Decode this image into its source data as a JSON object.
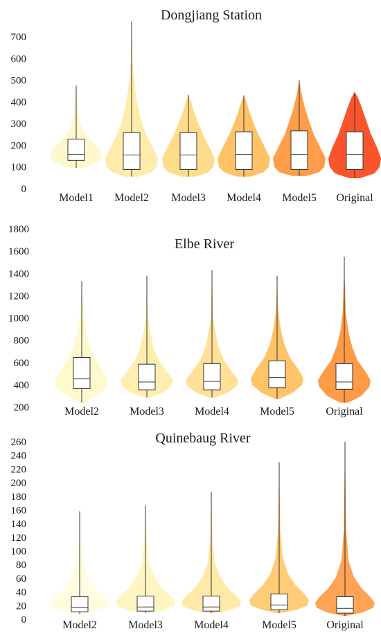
{
  "figure": {
    "description_title": ""
  },
  "chart_data": [
    {
      "type": "violin",
      "title": "Dongjiang Station",
      "xlabel": "",
      "ylabel": "",
      "ylim": [
        0,
        780
      ],
      "yticks": [
        0,
        100,
        200,
        300,
        400,
        500,
        600,
        700
      ],
      "grid": false,
      "series": [
        {
          "name": "Model1",
          "color": "#fff8cc",
          "min": 95,
          "q1": 130,
          "median": 158,
          "q3": 228,
          "max": 475,
          "density": [
            [
              95,
              0.25
            ],
            [
              110,
              0.6
            ],
            [
              130,
              0.9
            ],
            [
              160,
              1.0
            ],
            [
              190,
              0.85
            ],
            [
              230,
              0.5
            ],
            [
              280,
              0.22
            ],
            [
              330,
              0.1
            ],
            [
              400,
              0.04
            ],
            [
              475,
              0.0
            ]
          ]
        },
        {
          "name": "Model2",
          "color": "#ffebaa",
          "min": 55,
          "q1": 88,
          "median": 155,
          "q3": 258,
          "max": 770,
          "density": [
            [
              55,
              0.25
            ],
            [
              75,
              0.75
            ],
            [
              100,
              0.95
            ],
            [
              140,
              1.0
            ],
            [
              190,
              0.8
            ],
            [
              250,
              0.55
            ],
            [
              320,
              0.35
            ],
            [
              400,
              0.2
            ],
            [
              470,
              0.12
            ],
            [
              520,
              0.07
            ],
            [
              600,
              0.03
            ],
            [
              700,
              0.01
            ],
            [
              770,
              0.0
            ]
          ]
        },
        {
          "name": "Model3",
          "color": "#ffdc8c",
          "min": 55,
          "q1": 88,
          "median": 155,
          "q3": 258,
          "max": 432,
          "density": [
            [
              55,
              0.25
            ],
            [
              75,
              0.75
            ],
            [
              100,
              0.95
            ],
            [
              140,
              1.0
            ],
            [
              190,
              0.8
            ],
            [
              250,
              0.55
            ],
            [
              300,
              0.38
            ],
            [
              350,
              0.22
            ],
            [
              400,
              0.1
            ],
            [
              432,
              0.0
            ]
          ]
        },
        {
          "name": "Model4",
          "color": "#ffc266",
          "min": 55,
          "q1": 88,
          "median": 158,
          "q3": 262,
          "max": 430,
          "density": [
            [
              55,
              0.25
            ],
            [
              75,
              0.75
            ],
            [
              100,
              0.95
            ],
            [
              140,
              1.0
            ],
            [
              190,
              0.8
            ],
            [
              250,
              0.55
            ],
            [
              300,
              0.38
            ],
            [
              350,
              0.22
            ],
            [
              400,
              0.1
            ],
            [
              430,
              0.0
            ]
          ]
        },
        {
          "name": "Model5",
          "color": "#ff9d4a",
          "min": 58,
          "q1": 88,
          "median": 158,
          "q3": 266,
          "max": 500,
          "density": [
            [
              58,
              0.25
            ],
            [
              75,
              0.75
            ],
            [
              100,
              0.95
            ],
            [
              140,
              1.0
            ],
            [
              190,
              0.8
            ],
            [
              250,
              0.55
            ],
            [
              310,
              0.38
            ],
            [
              370,
              0.22
            ],
            [
              430,
              0.1
            ],
            [
              500,
              0.0
            ]
          ]
        },
        {
          "name": "Original",
          "color": "#f9542b",
          "min": 48,
          "q1": 88,
          "median": 158,
          "q3": 262,
          "max": 445,
          "density": [
            [
              48,
              0.2
            ],
            [
              70,
              0.75
            ],
            [
              100,
              0.95
            ],
            [
              140,
              1.0
            ],
            [
              190,
              0.85
            ],
            [
              250,
              0.62
            ],
            [
              310,
              0.45
            ],
            [
              370,
              0.28
            ],
            [
              420,
              0.12
            ],
            [
              445,
              0.0
            ]
          ]
        }
      ]
    },
    {
      "type": "violin",
      "title": "Elbe River",
      "xlabel": "",
      "ylabel": "",
      "ylim": [
        200,
        1800
      ],
      "yticks": [
        200,
        400,
        600,
        800,
        1000,
        1200,
        1400,
        1600,
        1800
      ],
      "grid": false,
      "series": [
        {
          "name": "Model2",
          "color": "#fffacc",
          "min": 240,
          "q1": 365,
          "median": 455,
          "q3": 645,
          "max": 1330,
          "density": [
            [
              240,
              0.1
            ],
            [
              300,
              0.55
            ],
            [
              380,
              0.95
            ],
            [
              450,
              1.0
            ],
            [
              530,
              0.8
            ],
            [
              620,
              0.55
            ],
            [
              720,
              0.35
            ],
            [
              850,
              0.18
            ],
            [
              1000,
              0.08
            ],
            [
              1150,
              0.03
            ],
            [
              1330,
              0.0
            ]
          ]
        },
        {
          "name": "Model3",
          "color": "#ffeeb0",
          "min": 285,
          "q1": 355,
          "median": 425,
          "q3": 585,
          "max": 1380,
          "density": [
            [
              285,
              0.1
            ],
            [
              330,
              0.6
            ],
            [
              390,
              0.95
            ],
            [
              440,
              1.0
            ],
            [
              520,
              0.75
            ],
            [
              620,
              0.45
            ],
            [
              740,
              0.25
            ],
            [
              880,
              0.12
            ],
            [
              1000,
              0.05
            ],
            [
              1150,
              0.02
            ],
            [
              1380,
              0.0
            ]
          ]
        },
        {
          "name": "Model4",
          "color": "#ffe096",
          "min": 285,
          "q1": 355,
          "median": 430,
          "q3": 590,
          "max": 1430,
          "density": [
            [
              285,
              0.1
            ],
            [
              330,
              0.6
            ],
            [
              390,
              0.95
            ],
            [
              440,
              1.0
            ],
            [
              520,
              0.75
            ],
            [
              620,
              0.45
            ],
            [
              740,
              0.25
            ],
            [
              880,
              0.12
            ],
            [
              1000,
              0.05
            ],
            [
              1200,
              0.02
            ],
            [
              1430,
              0.0
            ]
          ]
        },
        {
          "name": "Model5",
          "color": "#ffc468",
          "min": 275,
          "q1": 375,
          "median": 465,
          "q3": 615,
          "max": 1380,
          "density": [
            [
              275,
              0.1
            ],
            [
              330,
              0.6
            ],
            [
              400,
              0.95
            ],
            [
              460,
              1.0
            ],
            [
              540,
              0.8
            ],
            [
              640,
              0.5
            ],
            [
              760,
              0.28
            ],
            [
              900,
              0.14
            ],
            [
              1050,
              0.05
            ],
            [
              1200,
              0.02
            ],
            [
              1380,
              0.0
            ]
          ]
        },
        {
          "name": "Original",
          "color": "#ff9a45",
          "min": 240,
          "q1": 360,
          "median": 425,
          "q3": 590,
          "max": 1550,
          "density": [
            [
              240,
              0.15
            ],
            [
              300,
              0.65
            ],
            [
              380,
              0.95
            ],
            [
              440,
              1.0
            ],
            [
              520,
              0.8
            ],
            [
              620,
              0.5
            ],
            [
              740,
              0.3
            ],
            [
              880,
              0.15
            ],
            [
              1050,
              0.06
            ],
            [
              1300,
              0.02
            ],
            [
              1550,
              0.0
            ]
          ]
        }
      ]
    },
    {
      "type": "violin",
      "title": "Quinebaug River",
      "xlabel": "",
      "ylabel": "",
      "ylim": [
        0,
        260
      ],
      "yticks": [
        0,
        20,
        40,
        60,
        80,
        100,
        120,
        140,
        160,
        180,
        200,
        220,
        240,
        260
      ],
      "grid": false,
      "series": [
        {
          "name": "Model2",
          "color": "#fffde0",
          "min": 8,
          "q1": 11,
          "median": 17,
          "q3": 33,
          "max": 158,
          "density": [
            [
              8,
              0.05
            ],
            [
              12,
              0.6
            ],
            [
              18,
              0.95
            ],
            [
              25,
              1.0
            ],
            [
              33,
              0.85
            ],
            [
              45,
              0.55
            ],
            [
              60,
              0.3
            ],
            [
              80,
              0.12
            ],
            [
              110,
              0.04
            ],
            [
              158,
              0.0
            ]
          ]
        },
        {
          "name": "Model3",
          "color": "#fff5c2",
          "min": 9,
          "q1": 12,
          "median": 18,
          "q3": 34,
          "max": 167,
          "density": [
            [
              9,
              0.05
            ],
            [
              13,
              0.6
            ],
            [
              19,
              0.95
            ],
            [
              26,
              1.0
            ],
            [
              34,
              0.85
            ],
            [
              46,
              0.55
            ],
            [
              62,
              0.3
            ],
            [
              82,
              0.12
            ],
            [
              115,
              0.04
            ],
            [
              167,
              0.0
            ]
          ]
        },
        {
          "name": "Model4",
          "color": "#ffe9a6",
          "min": 9,
          "q1": 12,
          "median": 18,
          "q3": 34,
          "max": 187,
          "density": [
            [
              9,
              0.05
            ],
            [
              13,
              0.6
            ],
            [
              19,
              0.95
            ],
            [
              26,
              1.0
            ],
            [
              34,
              0.85
            ],
            [
              46,
              0.55
            ],
            [
              62,
              0.3
            ],
            [
              82,
              0.12
            ],
            [
              115,
              0.04
            ],
            [
              187,
              0.0
            ]
          ]
        },
        {
          "name": "Model5",
          "color": "#ffcd78",
          "min": 9,
          "q1": 14,
          "median": 21,
          "q3": 37,
          "max": 230,
          "density": [
            [
              9,
              0.05
            ],
            [
              14,
              0.6
            ],
            [
              20,
              0.95
            ],
            [
              28,
              1.0
            ],
            [
              37,
              0.85
            ],
            [
              50,
              0.55
            ],
            [
              66,
              0.3
            ],
            [
              90,
              0.12
            ],
            [
              130,
              0.04
            ],
            [
              230,
              0.0
            ]
          ]
        },
        {
          "name": "Original",
          "color": "#ffa455",
          "min": 5,
          "q1": 9,
          "median": 16,
          "q3": 33,
          "max": 260,
          "density": [
            [
              5,
              0.05
            ],
            [
              10,
              0.6
            ],
            [
              17,
              0.95
            ],
            [
              24,
              1.0
            ],
            [
              33,
              0.85
            ],
            [
              46,
              0.55
            ],
            [
              62,
              0.3
            ],
            [
              86,
              0.12
            ],
            [
              130,
              0.04
            ],
            [
              260,
              0.0
            ]
          ]
        }
      ]
    }
  ]
}
